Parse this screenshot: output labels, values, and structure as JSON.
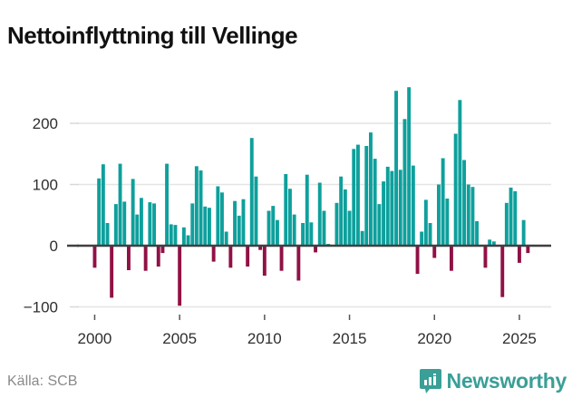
{
  "title": "Nettoinflyttning till Vellinge",
  "source": {
    "label": "Källa: SCB"
  },
  "branding": {
    "name": "Newsworthy",
    "color": "#3a9f97",
    "icon": "newsworthy-logo-icon"
  },
  "colors": {
    "positive_bar": "#0ea09c",
    "negative_bar": "#901145",
    "grid_line": "#e4e4e4",
    "zero_line": "#404040",
    "axis_text": "#2e2e2e",
    "tick_mark": "#d8d8d8"
  },
  "chart_data": {
    "type": "bar",
    "title": "Nettoinflyttning till Vellinge",
    "xlabel": "",
    "ylabel": "",
    "frequency": "quarterly",
    "start_year": 2000,
    "start_quarter": 1,
    "x_tick_labels": [
      "2000",
      "2005",
      "2010",
      "2015",
      "2020",
      "2025"
    ],
    "y_tick_labels": [
      "200",
      "100",
      "0",
      "−100"
    ],
    "y_ticks": [
      200,
      100,
      0,
      -100
    ],
    "ylim": [
      -110,
      265
    ],
    "grid": "horizontal",
    "legend": "none",
    "values": [
      -36,
      110,
      133,
      37,
      -85,
      68,
      134,
      72,
      -40,
      109,
      51,
      78,
      -41,
      71,
      69,
      -34,
      -12,
      134,
      35,
      34,
      -98,
      30,
      17,
      69,
      130,
      123,
      64,
      62,
      -26,
      97,
      87,
      23,
      -36,
      73,
      49,
      76,
      -34,
      176,
      113,
      -7,
      -49,
      57,
      65,
      42,
      -41,
      117,
      93,
      51,
      -57,
      37,
      116,
      38,
      -11,
      103,
      57,
      3,
      0,
      70,
      113,
      92,
      57,
      158,
      165,
      24,
      163,
      185,
      142,
      68,
      105,
      129,
      122,
      253,
      124,
      207,
      259,
      131,
      -46,
      23,
      75,
      37,
      -20,
      100,
      143,
      77,
      -41,
      183,
      238,
      140,
      100,
      96,
      40,
      0,
      -36,
      10,
      7,
      0,
      -84,
      70,
      95,
      89,
      -28,
      42,
      -12
    ]
  }
}
